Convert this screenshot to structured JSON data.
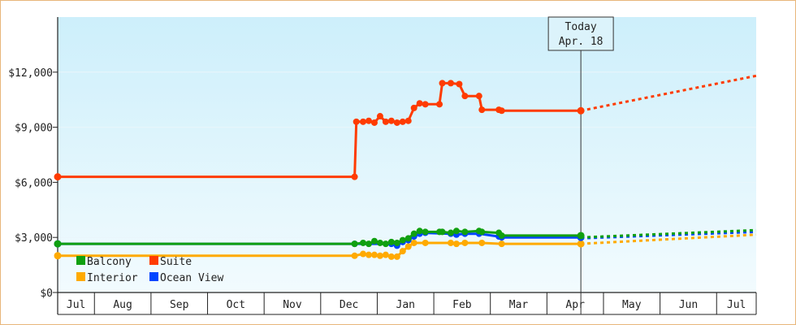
{
  "chart_data": {
    "type": "line",
    "title": "",
    "xlabel": "",
    "ylabel": "",
    "ylim": [
      0,
      15000
    ],
    "y_ticks": [
      0,
      3000,
      6000,
      9000,
      12000
    ],
    "y_tick_labels": [
      "$0",
      "$3,000",
      "$6,000",
      "$9,000",
      "$12,000"
    ],
    "x_range": [
      0,
      12.35
    ],
    "x_month_boundaries": [
      0,
      0.65,
      1.65,
      2.65,
      3.65,
      4.65,
      5.65,
      6.65,
      7.65,
      8.65,
      9.65,
      10.65,
      11.65,
      12.35
    ],
    "x_tick_labels": [
      "Jul",
      "Aug",
      "Sep",
      "Oct",
      "Nov",
      "Dec",
      "Jan",
      "Feb",
      "Mar",
      "Apr",
      "May",
      "Jun",
      "Jul"
    ],
    "today": {
      "line1": "Today",
      "line2": "Apr. 18",
      "x": 9.25
    },
    "grid": true,
    "legend_position": "bottom-left",
    "series": [
      {
        "name": "Suite",
        "color": "#ff3b00",
        "points": [
          [
            0,
            6300
          ],
          [
            5.25,
            6300
          ],
          [
            5.28,
            9300
          ],
          [
            5.4,
            9300
          ],
          [
            5.5,
            9350
          ],
          [
            5.6,
            9250
          ],
          [
            5.7,
            9600
          ],
          [
            5.8,
            9300
          ],
          [
            5.9,
            9350
          ],
          [
            6.0,
            9250
          ],
          [
            6.1,
            9300
          ],
          [
            6.2,
            9350
          ],
          [
            6.3,
            10050
          ],
          [
            6.4,
            10300
          ],
          [
            6.5,
            10250
          ],
          [
            6.75,
            10250
          ],
          [
            6.8,
            11400
          ],
          [
            6.95,
            11400
          ],
          [
            7.1,
            11350
          ],
          [
            7.2,
            10700
          ],
          [
            7.45,
            10700
          ],
          [
            7.5,
            9950
          ],
          [
            7.8,
            9950
          ],
          [
            7.85,
            9900
          ],
          [
            9.25,
            9900
          ]
        ],
        "forecast": [
          [
            9.25,
            9900
          ],
          [
            12.35,
            11800
          ]
        ]
      },
      {
        "name": "Balcony",
        "color": "#10a010",
        "points": [
          [
            0,
            2650
          ],
          [
            5.25,
            2650
          ],
          [
            5.4,
            2700
          ],
          [
            5.5,
            2650
          ],
          [
            5.6,
            2800
          ],
          [
            5.7,
            2700
          ],
          [
            5.8,
            2650
          ],
          [
            5.9,
            2750
          ],
          [
            6.0,
            2700
          ],
          [
            6.1,
            2850
          ],
          [
            6.2,
            2950
          ],
          [
            6.3,
            3200
          ],
          [
            6.4,
            3350
          ],
          [
            6.5,
            3300
          ],
          [
            6.75,
            3300
          ],
          [
            6.8,
            3300
          ],
          [
            6.95,
            3250
          ],
          [
            7.05,
            3350
          ],
          [
            7.2,
            3300
          ],
          [
            7.45,
            3350
          ],
          [
            7.5,
            3300
          ],
          [
            7.8,
            3250
          ],
          [
            7.85,
            3100
          ],
          [
            9.25,
            3100
          ]
        ],
        "forecast": [
          [
            9.25,
            3000
          ],
          [
            12.35,
            3400
          ]
        ]
      },
      {
        "name": "Ocean View",
        "color": "#0044ff",
        "points": [
          [
            0,
            2650
          ],
          [
            5.25,
            2650
          ],
          [
            5.9,
            2650
          ],
          [
            6.0,
            2550
          ],
          [
            6.1,
            2750
          ],
          [
            6.2,
            2850
          ],
          [
            6.3,
            3050
          ],
          [
            6.4,
            3200
          ],
          [
            6.5,
            3250
          ],
          [
            6.95,
            3200
          ],
          [
            7.05,
            3150
          ],
          [
            7.2,
            3200
          ],
          [
            7.45,
            3200
          ],
          [
            7.8,
            3050
          ],
          [
            7.85,
            3000
          ],
          [
            9.25,
            3000
          ]
        ],
        "forecast": [
          [
            9.25,
            2950
          ],
          [
            12.35,
            3300
          ]
        ]
      },
      {
        "name": "Interior",
        "color": "#ffaa00",
        "points": [
          [
            0,
            2000
          ],
          [
            5.25,
            2000
          ],
          [
            5.4,
            2100
          ],
          [
            5.5,
            2050
          ],
          [
            5.6,
            2050
          ],
          [
            5.7,
            2000
          ],
          [
            5.8,
            2050
          ],
          [
            5.9,
            1950
          ],
          [
            6.0,
            1950
          ],
          [
            6.1,
            2250
          ],
          [
            6.2,
            2500
          ],
          [
            6.3,
            2700
          ],
          [
            6.5,
            2700
          ],
          [
            6.95,
            2700
          ],
          [
            7.05,
            2650
          ],
          [
            7.2,
            2700
          ],
          [
            7.5,
            2700
          ],
          [
            7.85,
            2650
          ],
          [
            9.25,
            2650
          ]
        ],
        "forecast": [
          [
            9.25,
            2650
          ],
          [
            12.35,
            3150
          ]
        ]
      }
    ],
    "legend": [
      {
        "name": "Balcony",
        "color": "#10a010"
      },
      {
        "name": "Suite",
        "color": "#ff3b00"
      },
      {
        "name": "Interior",
        "color": "#ffaa00"
      },
      {
        "name": "Ocean View",
        "color": "#0044ff"
      }
    ]
  }
}
